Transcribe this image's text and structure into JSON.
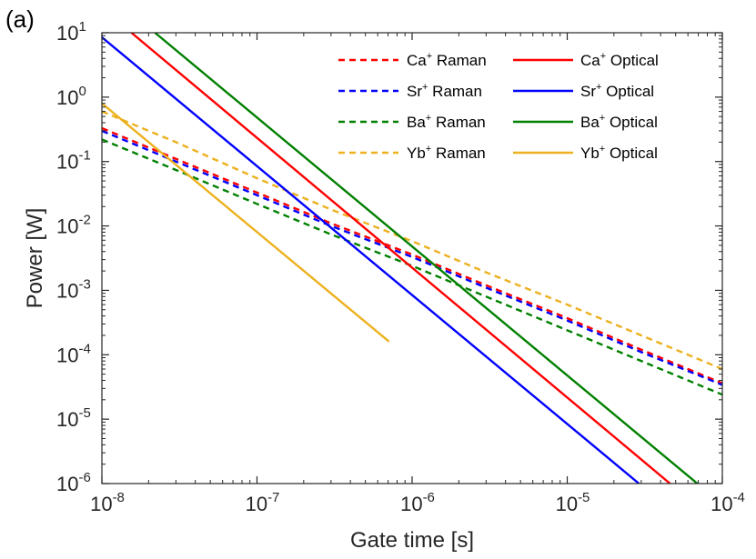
{
  "panel_label": "(a)",
  "colors": {
    "Ca": "#ff0000",
    "Sr": "#0000ff",
    "Ba": "#008000",
    "Yb": "#edb120",
    "axis": "#262626"
  },
  "chart_data": {
    "type": "line",
    "title": "",
    "xlabel": "Gate time [s]",
    "ylabel": "Power [W]",
    "xscale": "log",
    "yscale": "log",
    "xlim": [
      1e-08,
      0.0001
    ],
    "ylim": [
      1e-06,
      10
    ],
    "grid": false,
    "legend_position": "top-right",
    "x_ticks": [
      {
        "value": 1e-08,
        "base": "10",
        "exp": "-8"
      },
      {
        "value": 1e-07,
        "base": "10",
        "exp": "-7"
      },
      {
        "value": 1e-06,
        "base": "10",
        "exp": "-6"
      },
      {
        "value": 1e-05,
        "base": "10",
        "exp": "-5"
      },
      {
        "value": 0.0001,
        "base": "10",
        "exp": "-4"
      }
    ],
    "y_ticks": [
      {
        "value": 1e-06,
        "base": "10",
        "exp": "-6"
      },
      {
        "value": 1e-05,
        "base": "10",
        "exp": "-5"
      },
      {
        "value": 0.0001,
        "base": "10",
        "exp": "-4"
      },
      {
        "value": 0.001,
        "base": "10",
        "exp": "-3"
      },
      {
        "value": 0.01,
        "base": "10",
        "exp": "-2"
      },
      {
        "value": 0.1,
        "base": "10",
        "exp": "-1"
      },
      {
        "value": 1,
        "base": "10",
        "exp": "0"
      },
      {
        "value": 10,
        "base": "10",
        "exp": "1"
      }
    ],
    "series": [
      {
        "name": "Ca+ Raman",
        "ion": "Ca",
        "sup": "+",
        "suffix": "Raman",
        "color_key": "Ca",
        "style": "dashed",
        "x": [
          1e-08,
          3e-08,
          1e-07,
          3e-07,
          1e-06,
          3e-06,
          1e-05,
          3e-05,
          0.0001
        ],
        "y": [
          0.33,
          0.11,
          0.033,
          0.011,
          0.0036,
          0.0012,
          0.00037,
          0.00012,
          3.6e-05
        ]
      },
      {
        "name": "Sr+ Raman",
        "ion": "Sr",
        "sup": "+",
        "suffix": "Raman",
        "color_key": "Sr",
        "style": "dashed",
        "x": [
          1e-08,
          3e-08,
          1e-07,
          3e-07,
          1e-06,
          3e-06,
          1e-05,
          3e-05,
          0.0001
        ],
        "y": [
          0.3,
          0.1,
          0.03,
          0.01,
          0.0033,
          0.0011,
          0.00034,
          0.00011,
          3.4e-05
        ]
      },
      {
        "name": "Ba+ Raman",
        "ion": "Ba",
        "sup": "+",
        "suffix": "Raman",
        "color_key": "Ba",
        "style": "dashed",
        "x": [
          1e-08,
          3e-08,
          1e-07,
          3e-07,
          1e-06,
          3e-06,
          1e-05,
          3e-05,
          0.0001
        ],
        "y": [
          0.22,
          0.074,
          0.022,
          0.0074,
          0.0024,
          0.0008,
          0.00024,
          8e-05,
          2.4e-05
        ]
      },
      {
        "name": "Yb+ Raman",
        "ion": "Yb",
        "sup": "+",
        "suffix": "Raman",
        "color_key": "Yb",
        "style": "dashed",
        "x": [
          1e-08,
          3e-08,
          1e-07,
          3e-07,
          1e-06,
          3e-06,
          1e-05,
          3e-05,
          0.0001
        ],
        "y": [
          0.6,
          0.2,
          0.055,
          0.018,
          0.0058,
          0.0019,
          0.0006,
          0.0002,
          6e-05
        ]
      },
      {
        "name": "Ca+ Optical",
        "ion": "Ca",
        "sup": "+",
        "suffix": "Optical",
        "color_key": "Ca",
        "style": "solid",
        "x": [
          1.55e-08,
          4.6e-05
        ],
        "y": [
          10,
          1e-06
        ]
      },
      {
        "name": "Sr+ Optical",
        "ion": "Sr",
        "sup": "+",
        "suffix": "Optical",
        "color_key": "Sr",
        "style": "solid",
        "x": [
          1e-08,
          2.9e-05
        ],
        "y": [
          8.5,
          1e-06
        ]
      },
      {
        "name": "Ba+ Optical",
        "ion": "Ba",
        "sup": "+",
        "suffix": "Optical",
        "color_key": "Ba",
        "style": "solid",
        "x": [
          2.2e-08,
          6.9e-05
        ],
        "y": [
          10,
          1e-06
        ]
      },
      {
        "name": "Yb+ Optical",
        "ion": "Yb",
        "sup": "+",
        "suffix": "Optical",
        "color_key": "Yb",
        "style": "solid",
        "x": [
          1e-08,
          7.1e-07
        ],
        "y": [
          0.8,
          0.00016
        ]
      }
    ]
  }
}
